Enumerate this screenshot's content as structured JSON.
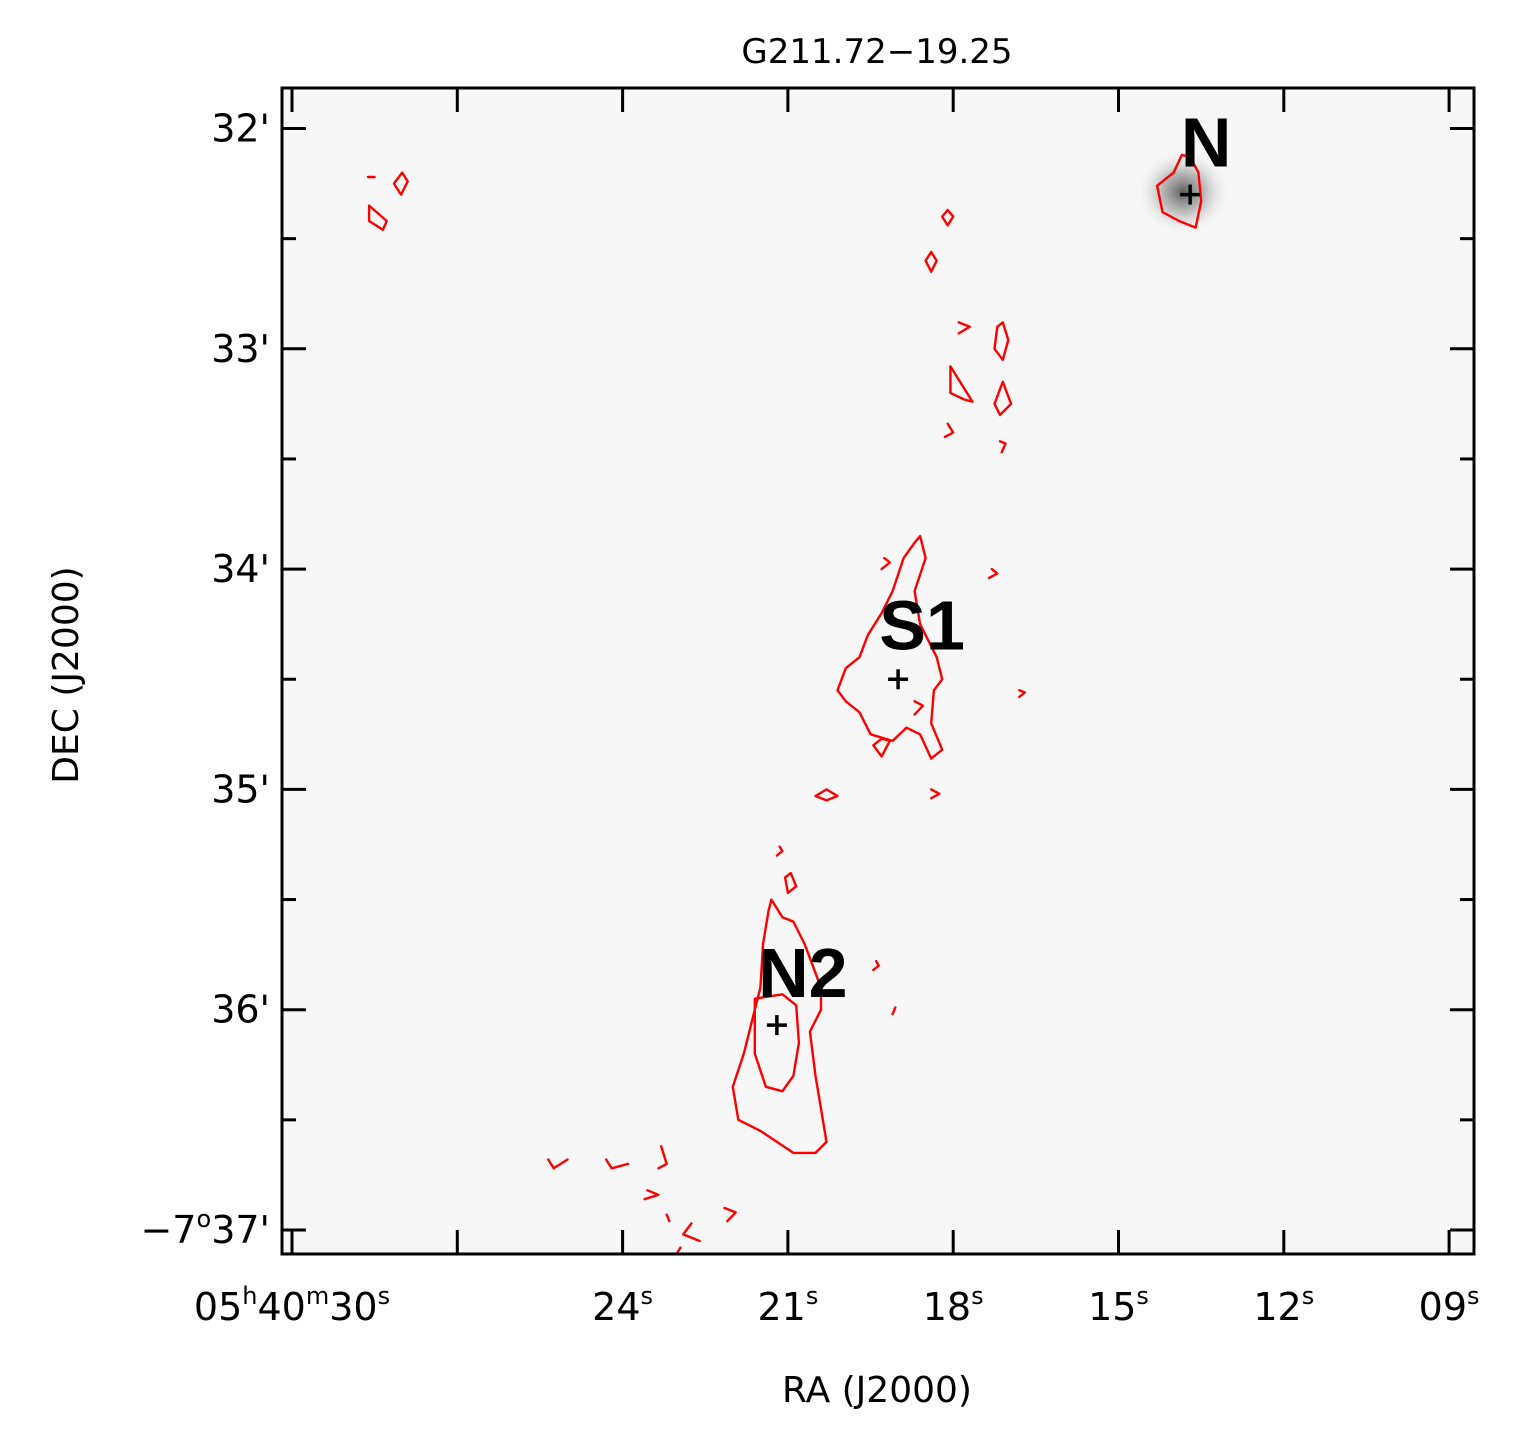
{
  "chart_data": {
    "type": "contour",
    "title": "G211.72−19.25",
    "xlabel": "RA (J2000)",
    "ylabel": "DEC (J2000)",
    "x_ticks": [
      {
        "value": 30,
        "label": [
          "05",
          "h",
          "40",
          "m",
          "30",
          "s"
        ]
      },
      {
        "value": 24,
        "label": [
          "24",
          "s"
        ]
      },
      {
        "value": 21,
        "label": [
          "21",
          "s"
        ]
      },
      {
        "value": 18,
        "label": [
          "18",
          "s"
        ]
      },
      {
        "value": 15,
        "label": [
          "15",
          "s"
        ]
      },
      {
        "value": 12,
        "label": [
          "12",
          "s"
        ]
      },
      {
        "value": 9,
        "label": [
          "09",
          "s"
        ]
      }
    ],
    "y_ticks": [
      {
        "value": 32,
        "label": [
          "32'"
        ]
      },
      {
        "value": 33,
        "label": [
          "33'"
        ]
      },
      {
        "value": 34,
        "label": [
          "34'"
        ]
      },
      {
        "value": 35,
        "label": [
          "35'"
        ]
      },
      {
        "value": 36,
        "label": [
          "36'"
        ]
      },
      {
        "value": 37,
        "label": [
          "−7",
          "o",
          "37'"
        ]
      }
    ],
    "x_minor_ticks": [
      27
    ],
    "y_minor_ticks": [
      32.5,
      33.5,
      34.5,
      35.5,
      36.5
    ],
    "xlim": [
      30.3,
      8.7
    ],
    "ylim": [
      37.1,
      31.8
    ],
    "x_unit": "seconds of RA past 05h40m",
    "y_unit": "arcmin south of -7°",
    "sources": [
      {
        "name": "N",
        "ra_s": 13.7,
        "dec_min": 32.3
      },
      {
        "name": "S1",
        "ra_s": 19.0,
        "dec_min": 34.5
      },
      {
        "name": "N2",
        "ra_s": 21.2,
        "dec_min": 36.07
      }
    ],
    "contour_color": "#ff0000",
    "marker": "+",
    "background": "greyscale",
    "grid": false,
    "contours": [
      [
        [
          13.7,
          32.13
        ],
        [
          13.55,
          32.2
        ],
        [
          13.5,
          32.33
        ],
        [
          13.6,
          32.45
        ],
        [
          13.9,
          32.42
        ],
        [
          14.2,
          32.38
        ],
        [
          14.3,
          32.26
        ],
        [
          14.0,
          32.2
        ],
        [
          13.85,
          32.12
        ]
      ],
      [
        [
          28.0,
          32.2
        ],
        [
          27.9,
          32.24
        ],
        [
          28.02,
          32.3
        ],
        [
          28.15,
          32.25
        ]
      ],
      [
        [
          28.5,
          32.22
        ],
        [
          28.62,
          32.22
        ]
      ],
      [
        [
          28.6,
          32.35
        ],
        [
          28.6,
          32.42
        ],
        [
          28.35,
          32.46
        ],
        [
          28.28,
          32.42
        ]
      ],
      [
        [
          18.1,
          32.37
        ],
        [
          18.0,
          32.4
        ],
        [
          18.1,
          32.44
        ],
        [
          18.2,
          32.4
        ]
      ],
      [
        [
          18.4,
          32.56
        ],
        [
          18.3,
          32.6
        ],
        [
          18.4,
          32.65
        ],
        [
          18.5,
          32.6
        ]
      ],
      [
        [
          17.1,
          32.88
        ],
        [
          17.0,
          32.96
        ],
        [
          17.1,
          33.05
        ],
        [
          17.25,
          33.0
        ],
        [
          17.2,
          32.9
        ]
      ],
      [
        [
          17.9,
          32.88
        ],
        [
          17.7,
          32.9
        ],
        [
          17.9,
          32.93
        ]
      ],
      [
        [
          18.05,
          33.08
        ],
        [
          18.05,
          33.2
        ],
        [
          17.8,
          33.23
        ],
        [
          17.65,
          33.24
        ]
      ],
      [
        [
          17.1,
          33.15
        ],
        [
          16.95,
          33.25
        ],
        [
          17.15,
          33.3
        ],
        [
          17.25,
          33.25
        ]
      ],
      [
        [
          18.1,
          33.34
        ],
        [
          18.0,
          33.38
        ],
        [
          18.15,
          33.4
        ]
      ],
      [
        [
          17.15,
          33.42
        ],
        [
          17.05,
          33.43
        ],
        [
          17.12,
          33.47
        ]
      ],
      [
        [
          18.6,
          33.85
        ],
        [
          18.5,
          33.95
        ],
        [
          18.7,
          34.1
        ],
        [
          18.6,
          34.25
        ],
        [
          18.3,
          34.4
        ],
        [
          18.2,
          34.5
        ],
        [
          18.35,
          34.55
        ],
        [
          18.4,
          34.7
        ],
        [
          18.2,
          34.82
        ],
        [
          18.4,
          34.86
        ],
        [
          18.6,
          34.75
        ],
        [
          18.85,
          34.72
        ],
        [
          19.1,
          34.78
        ],
        [
          19.5,
          34.75
        ],
        [
          19.7,
          34.65
        ],
        [
          19.95,
          34.6
        ],
        [
          20.1,
          34.55
        ],
        [
          19.95,
          34.45
        ],
        [
          19.7,
          34.4
        ],
        [
          19.55,
          34.3
        ],
        [
          19.3,
          34.2
        ],
        [
          19.1,
          34.1
        ],
        [
          18.9,
          33.95
        ],
        [
          18.7,
          33.88
        ]
      ],
      [
        [
          19.3,
          34.77
        ],
        [
          19.15,
          34.78
        ],
        [
          19.3,
          34.85
        ],
        [
          19.45,
          34.8
        ]
      ],
      [
        [
          19.25,
          33.95
        ],
        [
          19.15,
          33.97
        ],
        [
          19.3,
          34.0
        ]
      ],
      [
        [
          18.7,
          34.6
        ],
        [
          18.55,
          34.62
        ],
        [
          18.7,
          34.66
        ]
      ],
      [
        [
          20.3,
          35.0
        ],
        [
          20.1,
          35.03
        ],
        [
          20.3,
          35.05
        ],
        [
          20.5,
          35.03
        ]
      ],
      [
        [
          18.4,
          35.0
        ],
        [
          18.25,
          35.02
        ],
        [
          18.4,
          35.04
        ]
      ],
      [
        [
          17.3,
          34.0
        ],
        [
          17.2,
          34.02
        ],
        [
          17.35,
          34.04
        ]
      ],
      [
        [
          16.8,
          34.55
        ],
        [
          16.7,
          34.56
        ],
        [
          16.8,
          34.58
        ]
      ],
      [
        [
          21.3,
          35.5
        ],
        [
          21.1,
          35.58
        ],
        [
          20.9,
          35.6
        ],
        [
          20.7,
          35.7
        ],
        [
          20.55,
          35.8
        ],
        [
          20.4,
          35.9
        ],
        [
          20.4,
          36.0
        ],
        [
          20.6,
          36.1
        ],
        [
          20.5,
          36.3
        ],
        [
          20.4,
          36.45
        ],
        [
          20.3,
          36.6
        ],
        [
          20.5,
          36.65
        ],
        [
          20.9,
          36.65
        ],
        [
          21.2,
          36.6
        ],
        [
          21.5,
          36.55
        ],
        [
          21.9,
          36.5
        ],
        [
          22.0,
          36.35
        ],
        [
          21.8,
          36.2
        ],
        [
          21.6,
          36.0
        ],
        [
          21.5,
          35.9
        ],
        [
          21.45,
          35.7
        ],
        [
          21.35,
          35.55
        ]
      ],
      [
        [
          21.6,
          35.95
        ],
        [
          21.6,
          36.2
        ],
        [
          21.4,
          36.35
        ],
        [
          21.1,
          36.37
        ],
        [
          20.9,
          36.3
        ],
        [
          20.8,
          36.15
        ],
        [
          20.85,
          35.98
        ],
        [
          21.1,
          35.93
        ]
      ],
      [
        [
          21.05,
          35.4
        ],
        [
          20.95,
          35.38
        ],
        [
          20.85,
          35.44
        ],
        [
          21.0,
          35.47
        ]
      ],
      [
        [
          21.15,
          35.26
        ],
        [
          21.1,
          35.28
        ],
        [
          21.2,
          35.3
        ]
      ],
      [
        [
          19.4,
          35.78
        ],
        [
          19.35,
          35.8
        ],
        [
          19.45,
          35.82
        ]
      ],
      [
        [
          19.05,
          35.99
        ],
        [
          19.1,
          36.02
        ]
      ],
      [
        [
          23.9,
          36.7
        ],
        [
          24.2,
          36.72
        ],
        [
          24.3,
          36.68
        ]
      ],
      [
        [
          25.0,
          36.68
        ],
        [
          25.25,
          36.72
        ],
        [
          25.35,
          36.68
        ]
      ],
      [
        [
          23.3,
          36.62
        ],
        [
          23.2,
          36.7
        ],
        [
          23.35,
          36.72
        ]
      ],
      [
        [
          23.55,
          36.82
        ],
        [
          23.35,
          36.84
        ],
        [
          23.6,
          36.86
        ]
      ],
      [
        [
          22.15,
          36.9
        ],
        [
          21.95,
          36.92
        ],
        [
          22.1,
          36.96
        ]
      ],
      [
        [
          23.2,
          36.93
        ],
        [
          23.15,
          36.96
        ]
      ],
      [
        [
          22.75,
          36.97
        ],
        [
          22.9,
          37.02
        ],
        [
          22.6,
          37.05
        ]
      ],
      [
        [
          23.0,
          37.1
        ],
        [
          22.95,
          37.08
        ]
      ]
    ]
  }
}
